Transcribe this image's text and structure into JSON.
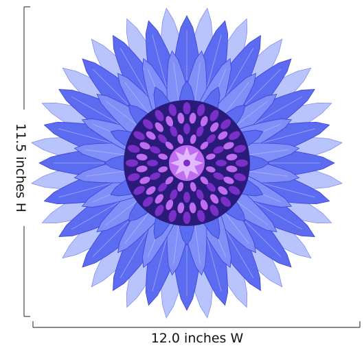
{
  "dimensions": {
    "height_label": "11.5 inches H",
    "width_label": "12.0 inches W"
  },
  "flower": {
    "subject": "blue-cornflower-kaleidoscope",
    "colors": {
      "petal_outer": "#5b6cf0",
      "petal_mid": "#7f8ff7",
      "petal_light": "#b8c4fb",
      "petal_dark": "#3d3fd8",
      "center_dark": "#2a1a7a",
      "center_purple": "#7a2fc8",
      "center_magenta": "#c06cf0",
      "center_light": "#e2b8ff"
    }
  }
}
